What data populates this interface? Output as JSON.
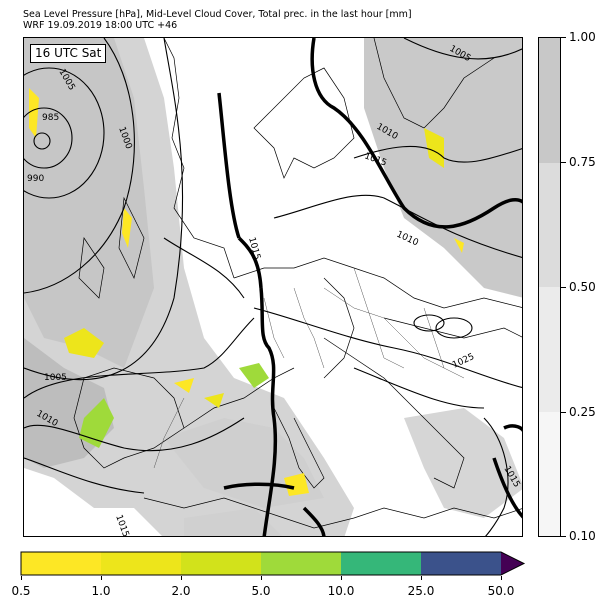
{
  "title": {
    "line1": "Sea Level Pressure [hPa], Mid-Level Cloud Cover, Total prec. in the last hour [mm]",
    "line2": "WRF 19.09.2019 18:00 UTC +46"
  },
  "map": {
    "time_label": "16 UTC Sat",
    "isobar_labels": [
      "1005",
      "985",
      "990",
      "1000",
      "1005",
      "1010",
      "1015",
      "1015",
      "1010",
      "1005",
      "1010",
      "1015",
      "1025",
      "1015",
      "1015"
    ]
  },
  "cloud_colorbar": {
    "ticks": [
      "1.00",
      "0.75",
      "0.50",
      "0.25",
      "0.10"
    ],
    "colors": [
      "#c8c8c8",
      "#dcdcdc",
      "#ebebeb",
      "#f6f6f6"
    ]
  },
  "precip_colorbar": {
    "ticks": [
      "0.5",
      "1.0",
      "2.0",
      "5.0",
      "10.0",
      "25.0",
      "50.0"
    ],
    "colors": [
      "#fde725",
      "#ede51b",
      "#d2e21b",
      "#9fda3a",
      "#35b779",
      "#30698e",
      "#3b528b",
      "#440154"
    ]
  }
}
